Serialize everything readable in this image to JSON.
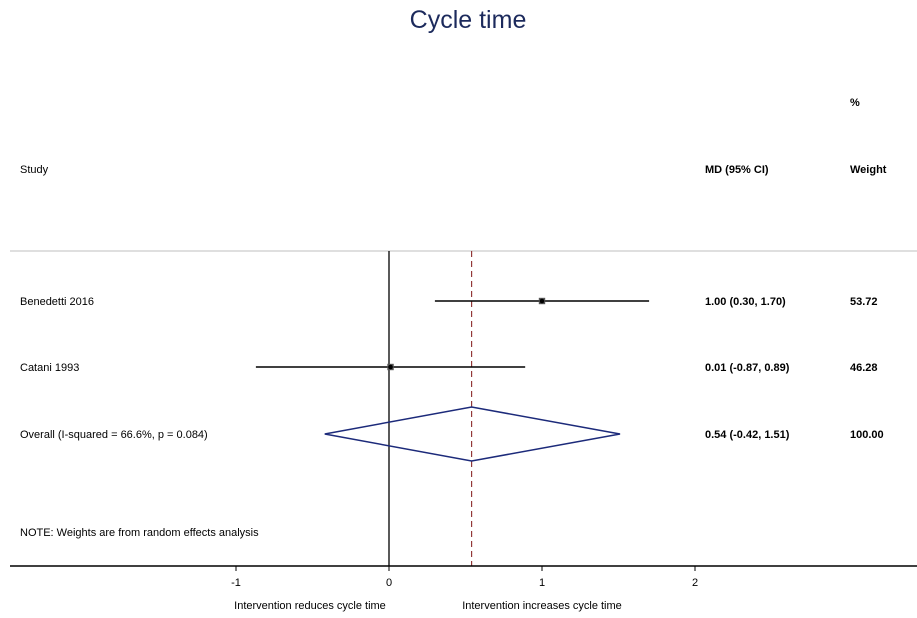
{
  "chart_data": {
    "type": "forest",
    "title": "Cycle time",
    "headers": {
      "study": "Study",
      "effect": "MD (95% CI)",
      "weight_top": "%",
      "weight": "Weight"
    },
    "studies": [
      {
        "label": "Benedetti 2016",
        "md": 1.0,
        "lower": 0.3,
        "upper": 1.7,
        "ci_text": "1.00 (0.30, 1.70)",
        "weight": "53.72"
      },
      {
        "label": "Catani 1993",
        "md": 0.01,
        "lower": -0.87,
        "upper": 0.89,
        "ci_text": "0.01 (-0.87, 0.89)",
        "weight": "46.28"
      }
    ],
    "overall": {
      "label": "Overall  (I-squared = 66.6%, p = 0.084)",
      "md": 0.54,
      "lower": -0.42,
      "upper": 1.51,
      "ci_text": "0.54 (-0.42, 1.51)",
      "weight": "100.00"
    },
    "note": "NOTE: Weights are from random effects analysis",
    "x_ticks": [
      -1,
      0,
      1,
      2
    ],
    "x_tick_labels": [
      "-1",
      "0",
      "1",
      "2"
    ],
    "xlabel_left": "Intervention reduces cycle time",
    "xlabel_right": "Intervention increases cycle time",
    "null_value": 0,
    "colors": {
      "title": "#1c2a5c",
      "diamond": "#1c2a7a",
      "overall_line": "#8b2a2a",
      "separator": "#bfbfbf"
    }
  }
}
